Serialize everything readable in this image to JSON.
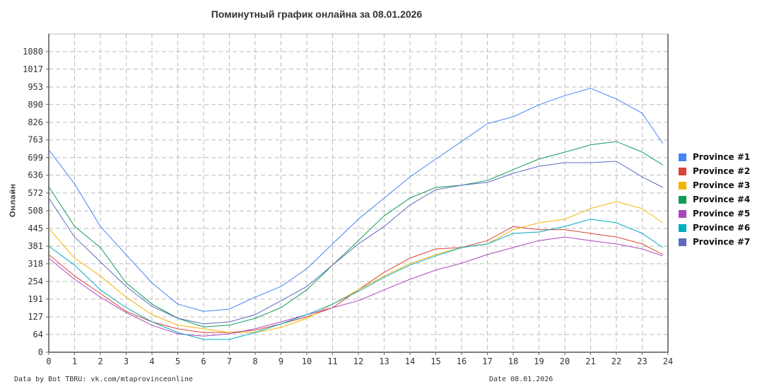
{
  "chart_data": {
    "type": "line",
    "title": "Поминутный график онлайна за 08.01.2026",
    "xlabel": "",
    "ylabel": "Онлайн",
    "xlim": [
      0,
      24
    ],
    "ylim": [
      0,
      1143.5
    ],
    "x_ticks": [
      "0",
      "1",
      "2",
      "3",
      "4",
      "5",
      "6",
      "7",
      "8",
      "9",
      "10",
      "11",
      "12",
      "13",
      "14",
      "15",
      "16",
      "17",
      "18",
      "19",
      "20",
      "21",
      "22",
      "23",
      "24"
    ],
    "y_ticks": [
      0,
      64,
      127,
      191,
      254,
      318,
      381,
      445,
      508,
      572,
      636,
      699,
      763,
      826,
      890,
      953,
      1017,
      1080
    ],
    "grid": true,
    "legend_position": "right",
    "x": [
      0,
      1,
      2,
      3,
      4,
      5,
      6,
      7,
      8,
      9,
      10,
      11,
      12,
      13,
      14,
      15,
      16,
      17,
      18,
      19,
      20,
      21,
      22,
      23,
      23.8
    ],
    "series": [
      {
        "name": "Province #1",
        "color": "#4285f4",
        "values": [
          727,
          605,
          452,
          350,
          249,
          173,
          147,
          155,
          198,
          236,
          300,
          389,
          478,
          554,
          630,
          694,
          757,
          821,
          846,
          889,
          922,
          948,
          910,
          859,
          750
        ]
      },
      {
        "name": "Province #2",
        "color": "#db4437",
        "values": [
          351,
          274,
          211,
          147,
          109,
          84,
          71,
          71,
          79,
          102,
          127,
          160,
          224,
          287,
          338,
          371,
          376,
          401,
          452,
          440,
          440,
          427,
          414,
          389,
          351
        ]
      },
      {
        "name": "Province #3",
        "color": "#f4b400",
        "values": [
          445,
          338,
          274,
          198,
          135,
          97,
          84,
          71,
          71,
          89,
          122,
          173,
          224,
          274,
          318,
          351,
          376,
          389,
          440,
          465,
          478,
          516,
          541,
          516,
          465
        ]
      },
      {
        "name": "Province #4",
        "color": "#0f9d58",
        "values": [
          595,
          452,
          376,
          249,
          173,
          122,
          91,
          97,
          122,
          160,
          224,
          313,
          401,
          490,
          554,
          592,
          600,
          617,
          656,
          694,
          719,
          745,
          757,
          719,
          673
        ]
      },
      {
        "name": "Province #5",
        "color": "#ab47bc",
        "values": [
          338,
          262,
          198,
          142,
          97,
          66,
          58,
          66,
          84,
          109,
          135,
          160,
          185,
          224,
          262,
          295,
          320,
          351,
          376,
          401,
          414,
          401,
          389,
          371,
          346
        ]
      },
      {
        "name": "Province #6",
        "color": "#00acc1",
        "values": [
          381,
          313,
          224,
          160,
          109,
          71,
          46,
          46,
          71,
          102,
          135,
          173,
          219,
          269,
          313,
          346,
          376,
          389,
          427,
          432,
          452,
          478,
          465,
          427,
          376
        ]
      },
      {
        "name": "Province #7",
        "color": "#5c6bc0",
        "values": [
          554,
          414,
          325,
          236,
          165,
          122,
          102,
          109,
          135,
          185,
          236,
          313,
          389,
          452,
          529,
          584,
          600,
          610,
          643,
          668,
          681,
          681,
          686,
          630,
          592
        ]
      }
    ]
  },
  "footer": {
    "source": "Data by Bot TBRU: vk.com/mtaprovinceonline",
    "date": "Date 08.01.2026"
  }
}
